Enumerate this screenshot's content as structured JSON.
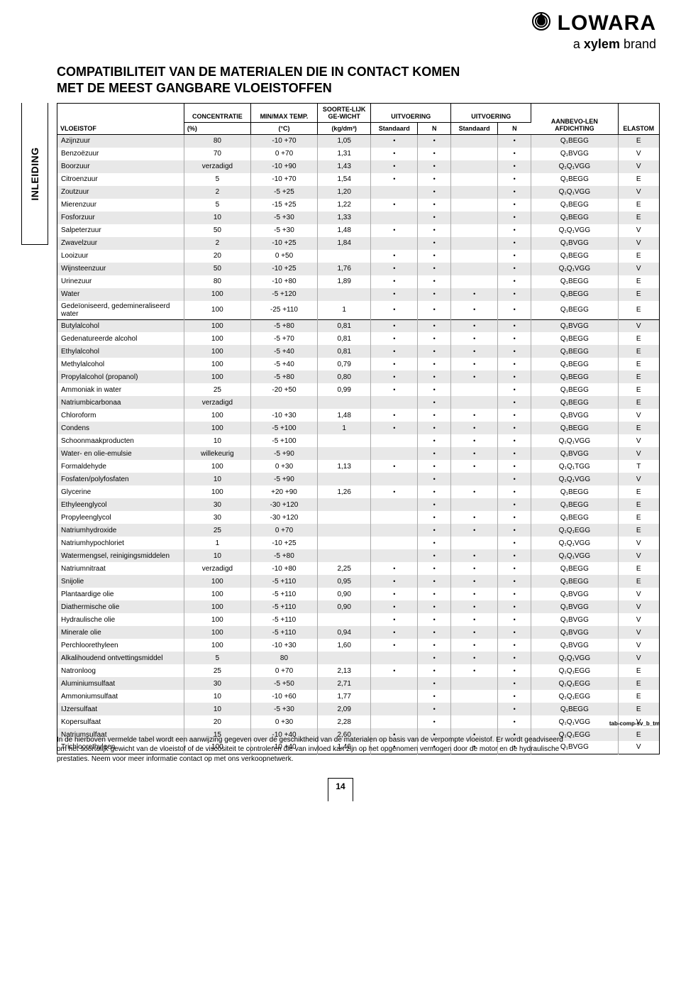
{
  "logo": {
    "brand": "LOWARA",
    "tagline_prefix": "a ",
    "tagline_bold": "xylem",
    "tagline_suffix": " brand"
  },
  "page_title_line1": "COMPATIBILITEIT VAN DE MATERIALEN DIE IN CONTACT KOMEN",
  "page_title_line2": "MET DE MEEST GANGBARE VLOEISTOFFEN",
  "side_tab": "INLEIDING",
  "footnote": "In de hierboven vermelde tabel wordt een aanwijzing gegeven over de geschiktheid van de materialen op basis van de verpompte vloeistof. Er wordt geadviseerd om het soortelijk gewicht van de vloeistof of de viscositeit te controleren die van invloed kan zijn op het opgenomen vermogen door de motor en de hydraulische prestaties. Neem voor meer informatie contact op met ons verkoopnetwerk.",
  "ref_tag": "tab-comp-sv_b_tm",
  "page_number": "14",
  "headers": {
    "c0": "VLOEISTOF",
    "c1_top": "CONCENTRATIE",
    "c1_bot": "(%)",
    "c2_top": "MIN/MAX TEMP.",
    "c2_bot": "(°C)",
    "c3_top": "SOORTE-LIJK GE-WICHT",
    "c3_bot": "(kg/dm³)",
    "c4_top": "UITVOERING",
    "c5_top": "UITVOERING",
    "c_std": "Standaard",
    "c_n": "N",
    "c8_top": "AANBEVO-LEN AFDICHTING",
    "c9_top": "ELASTOM"
  },
  "col_widths": [
    "19%",
    "10%",
    "10%",
    "8%",
    "7%",
    "5%",
    "7%",
    "5%",
    "13%",
    "6%"
  ],
  "row_colors": {
    "even": "#e8e8e8",
    "odd": "#ffffff"
  },
  "rows": [
    [
      "Azijnzuur",
      "80",
      "-10 +70",
      "1,05",
      "•",
      "•",
      "",
      "•",
      "Q₁BEGG",
      "E"
    ],
    [
      "Benzoëzuur",
      "70",
      "0 +70",
      "1,31",
      "•",
      "•",
      "",
      "•",
      "Q₁BVGG",
      "V"
    ],
    [
      "Boorzuur",
      "verzadigd",
      "-10 +90",
      "1,43",
      "•",
      "•",
      "",
      "•",
      "Q₁Q₁VGG",
      "V"
    ],
    [
      "Citroenzuur",
      "5",
      "-10 +70",
      "1,54",
      "•",
      "•",
      "",
      "•",
      "Q₁BEGG",
      "E"
    ],
    [
      "Zoutzuur",
      "2",
      "-5 +25",
      "1,20",
      "",
      "•",
      "",
      "•",
      "Q₁Q₁VGG",
      "V"
    ],
    [
      "Mierenzuur",
      "5",
      "-15 +25",
      "1,22",
      "•",
      "•",
      "",
      "•",
      "Q₁BEGG",
      "E"
    ],
    [
      "Fosforzuur",
      "10",
      "-5 +30",
      "1,33",
      "",
      "•",
      "",
      "•",
      "Q₁BEGG",
      "E"
    ],
    [
      "Salpeterzuur",
      "50",
      "-5 +30",
      "1,48",
      "•",
      "•",
      "",
      "•",
      "Q₁Q₁VGG",
      "V"
    ],
    [
      "Zwavelzuur",
      "2",
      "-10 +25",
      "1,84",
      "",
      "•",
      "",
      "•",
      "Q₁BVGG",
      "V"
    ],
    [
      "Looizuur",
      "20",
      "0 +50",
      "",
      "•",
      "•",
      "",
      "•",
      "Q₁BEGG",
      "E"
    ],
    [
      "Wijnsteenzuur",
      "50",
      "-10 +25",
      "1,76",
      "•",
      "•",
      "",
      "•",
      "Q₁Q₁VGG",
      "V"
    ],
    [
      "Urinezuur",
      "80",
      "-10 +80",
      "1,89",
      "•",
      "•",
      "",
      "•",
      "Q₁BEGG",
      "E"
    ],
    [
      "Water",
      "100",
      "-5 +120",
      "",
      "•",
      "•",
      "•",
      "•",
      "Q₁BEGG",
      "E"
    ],
    [
      "Gedeïoniseerd, gedemineraliseerd water",
      "100",
      "-25 +110",
      "1",
      "•",
      "•",
      "•",
      "•",
      "Q₁BEGG",
      "E"
    ],
    [
      "Butylalcohol",
      "100",
      "-5 +80",
      "0,81",
      "•",
      "•",
      "•",
      "•",
      "Q₁BVGG",
      "V"
    ],
    [
      "Gedenatureerde alcohol",
      "100",
      "-5 +70",
      "0,81",
      "•",
      "•",
      "•",
      "•",
      "Q₁BEGG",
      "E"
    ],
    [
      "Ethylalcohol",
      "100",
      "-5 +40",
      "0,81",
      "•",
      "•",
      "•",
      "•",
      "Q₁BEGG",
      "E"
    ],
    [
      "Methylalcohol",
      "100",
      "-5 +40",
      "0,79",
      "•",
      "•",
      "•",
      "•",
      "Q₁BEGG",
      "E"
    ],
    [
      "Propylalcohol (propanol)",
      "100",
      "-5 +80",
      "0,80",
      "•",
      "•",
      "•",
      "•",
      "Q₁BEGG",
      "E"
    ],
    [
      "Ammoniak in water",
      "25",
      "-20 +50",
      "0,99",
      "•",
      "•",
      "",
      "•",
      "Q₁BEGG",
      "E"
    ],
    [
      "Natriumbicarbonaa",
      "verzadigd",
      "",
      "",
      "",
      "•",
      "",
      "•",
      "Q₁BEGG",
      "E"
    ],
    [
      "Chloroform",
      "100",
      "-10 +30",
      "1,48",
      "•",
      "•",
      "•",
      "•",
      "Q₁BVGG",
      "V"
    ],
    [
      "Condens",
      "100",
      "-5 +100",
      "1",
      "•",
      "•",
      "•",
      "•",
      "Q₁BEGG",
      "E"
    ],
    [
      "Schoonmaakproducten",
      "10",
      "-5 +100",
      "",
      "",
      "•",
      "•",
      "•",
      "Q₁Q₁VGG",
      "V"
    ],
    [
      "Water- en olie-emulsie",
      "willekeurig",
      "-5 +90",
      "",
      "",
      "•",
      "•",
      "•",
      "Q₁BVGG",
      "V"
    ],
    [
      "Formaldehyde",
      "100",
      "0 +30",
      "1,13",
      "•",
      "•",
      "•",
      "•",
      "Q₁Q₁TGG",
      "T"
    ],
    [
      "Fosfaten/polyfosfaten",
      "10",
      "-5 +90",
      "",
      "",
      "•",
      "",
      "•",
      "Q₁Q₁VGG",
      "V"
    ],
    [
      "Glycerine",
      "100",
      "+20 +90",
      "1,26",
      "•",
      "•",
      "•",
      "•",
      "Q₁BEGG",
      "E"
    ],
    [
      "Ethyleenglycol",
      "30",
      "-30 +120",
      "",
      "",
      "•",
      "",
      "•",
      "Q₁BEGG",
      "E"
    ],
    [
      "Propyleenglycol",
      "30",
      "-30 +120",
      "",
      "",
      "•",
      "•",
      "•",
      "Q₁BEGG",
      "E"
    ],
    [
      "Natriumhydroxide",
      "25",
      "0 +70",
      "",
      "",
      "•",
      "•",
      "•",
      "Q₁Q₁EGG",
      "E"
    ],
    [
      "Natriumhypochloriet",
      "1",
      "-10 +25",
      "",
      "",
      "•",
      "",
      "•",
      "Q₁Q₁VGG",
      "V"
    ],
    [
      "Watermengsel, reinigingsmiddelen",
      "10",
      "-5 +80",
      "",
      "",
      "•",
      "•",
      "•",
      "Q₁Q₁VGG",
      "V"
    ],
    [
      "Natriumnitraat",
      "verzadigd",
      "-10 +80",
      "2,25",
      "•",
      "•",
      "•",
      "•",
      "Q₁BEGG",
      "E"
    ],
    [
      "Snijolie",
      "100",
      "-5 +110",
      "0,95",
      "•",
      "•",
      "•",
      "•",
      "Q₁BEGG",
      "E"
    ],
    [
      "Plantaardige olie",
      "100",
      "-5 +110",
      "0,90",
      "•",
      "•",
      "•",
      "•",
      "Q₁BVGG",
      "V"
    ],
    [
      "Diathermische olie",
      "100",
      "-5 +110",
      "0,90",
      "•",
      "•",
      "•",
      "•",
      "Q₁BVGG",
      "V"
    ],
    [
      "Hydraulische olie",
      "100",
      "-5 +110",
      "",
      "•",
      "•",
      "•",
      "•",
      "Q₁BVGG",
      "V"
    ],
    [
      "Minerale olie",
      "100",
      "-5 +110",
      "0,94",
      "•",
      "•",
      "•",
      "•",
      "Q₁BVGG",
      "V"
    ],
    [
      "Perchloorethyleen",
      "100",
      "-10 +30",
      "1,60",
      "•",
      "•",
      "•",
      "•",
      "Q₁BVGG",
      "V"
    ],
    [
      "Alkalihoudend ontvettingsmiddel",
      "5",
      "80",
      "",
      "",
      "•",
      "•",
      "•",
      "Q₁Q₁VGG",
      "V"
    ],
    [
      "Natronloog",
      "25",
      "0 +70",
      "2,13",
      "•",
      "•",
      "•",
      "•",
      "Q₁Q₁EGG",
      "E"
    ],
    [
      "Aluminiumsulfaat",
      "30",
      "-5 +50",
      "2,71",
      "",
      "•",
      "",
      "•",
      "Q₁Q₁EGG",
      "E"
    ],
    [
      "Ammoniumsulfaat",
      "10",
      "-10 +60",
      "1,77",
      "",
      "•",
      "",
      "•",
      "Q₁Q₁EGG",
      "E"
    ],
    [
      "IJzersulfaat",
      "10",
      "-5 +30",
      "2,09",
      "",
      "•",
      "",
      "•",
      "Q₁BEGG",
      "E"
    ],
    [
      "Kopersulfaat",
      "20",
      "0 +30",
      "2,28",
      "",
      "•",
      "",
      "•",
      "Q₁Q₁VGG",
      "V"
    ],
    [
      "Natriumsulfaat",
      "15",
      "-10 +40",
      "2,60",
      "•",
      "•",
      "•",
      "•",
      "Q₁Q₁EGG",
      "E"
    ],
    [
      "Trichloorethyleen",
      "100",
      "-10 +40",
      "1,46",
      "•",
      "•",
      "•",
      "•",
      "Q₁BVGG",
      "V"
    ]
  ],
  "separator_row_indices": [
    14
  ]
}
